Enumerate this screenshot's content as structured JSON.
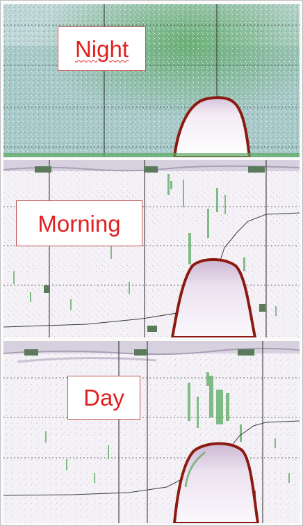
{
  "panels": [
    {
      "id": "night",
      "label": "Night"
    },
    {
      "id": "morning",
      "label": "Morning"
    },
    {
      "id": "day",
      "label": "Day"
    }
  ],
  "colors": {
    "label_text": "#e02020",
    "label_border": "#c0504d",
    "echo_edge": "#8b1a10",
    "seabed_fill": "#efe6f2",
    "night_background": "#a9c9c9",
    "noise_green": "#5aa860",
    "water_background": "#f4f2f6"
  }
}
